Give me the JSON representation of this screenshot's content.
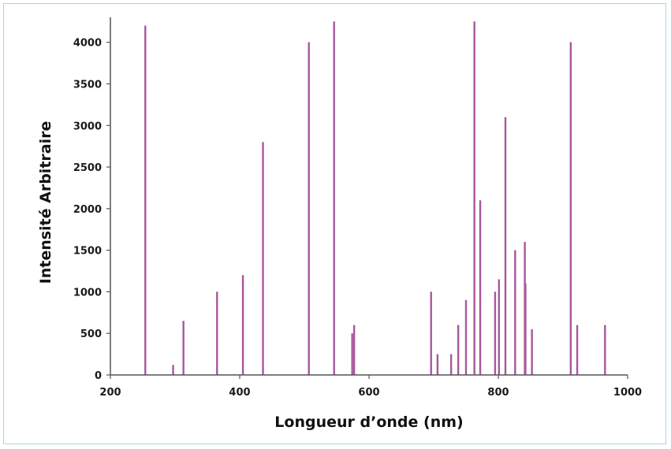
{
  "chart_data": {
    "type": "bar",
    "title": "",
    "xlabel": "Longueur d’onde (nm)",
    "ylabel": "Intensité Arbitraire",
    "xlim": [
      200,
      1000
    ],
    "ylim": [
      0,
      4300
    ],
    "xticks": [
      200,
      400,
      600,
      800,
      1000
    ],
    "yticks": [
      0,
      500,
      1000,
      1500,
      2000,
      2500,
      3000,
      3500,
      4000
    ],
    "grid": false,
    "legend": "none",
    "color": "#a8579c",
    "x": [
      254,
      297,
      313,
      365,
      405,
      436,
      507,
      546,
      574,
      577,
      696,
      706,
      727,
      738,
      750,
      763,
      772,
      795,
      801,
      811,
      826,
      841,
      842,
      852,
      912,
      922,
      965
    ],
    "values": [
      4200,
      120,
      650,
      1000,
      1200,
      2800,
      4000,
      4250,
      500,
      600,
      1000,
      250,
      250,
      600,
      900,
      4250,
      2100,
      1000,
      1150,
      3100,
      1500,
      1600,
      1100,
      550,
      4000,
      600,
      600
    ]
  }
}
